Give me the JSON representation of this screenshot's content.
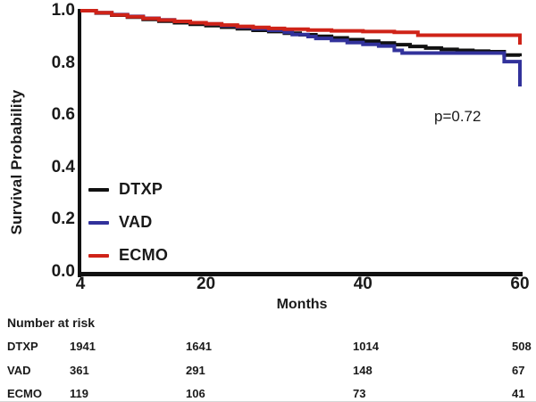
{
  "figure": {
    "y_axis_label": "Survival Probability",
    "x_axis_label": "Months",
    "p_value_label": "p=0.72"
  },
  "chart_data": {
    "type": "line",
    "subtype": "kaplan-meier-step-curves",
    "title": "",
    "xlabel": "Months",
    "ylabel": "Survival Probability",
    "annotation": "p=0.72",
    "xlim": [
      4,
      60
    ],
    "ylim": [
      0.0,
      1.0
    ],
    "xticks": [
      "4",
      "20",
      "40",
      "60"
    ],
    "xtick_values": [
      4,
      20,
      40,
      60
    ],
    "yticks": [
      "1.0",
      "0.8",
      "0.6",
      "0.4",
      "0.2",
      "0.0"
    ],
    "ytick_values": [
      1.0,
      0.8,
      0.6,
      0.4,
      0.2,
      0.0
    ],
    "grid": false,
    "legend_position": "inside-lower-left",
    "axis_color": "#111111",
    "series": [
      {
        "name": "DTXP",
        "color": "#111111",
        "points": [
          [
            4,
            1.0
          ],
          [
            6,
            0.991
          ],
          [
            8,
            0.983
          ],
          [
            10,
            0.975
          ],
          [
            12,
            0.967
          ],
          [
            14,
            0.96
          ],
          [
            16,
            0.954
          ],
          [
            18,
            0.948
          ],
          [
            20,
            0.943
          ],
          [
            22,
            0.937
          ],
          [
            24,
            0.931
          ],
          [
            26,
            0.925
          ],
          [
            28,
            0.92
          ],
          [
            30,
            0.914
          ],
          [
            32,
            0.908
          ],
          [
            34,
            0.902
          ],
          [
            36,
            0.896
          ],
          [
            38,
            0.889
          ],
          [
            40,
            0.883
          ],
          [
            42,
            0.876
          ],
          [
            44,
            0.87
          ],
          [
            46,
            0.863
          ],
          [
            48,
            0.857
          ],
          [
            50,
            0.852
          ],
          [
            52,
            0.848
          ],
          [
            54,
            0.845
          ],
          [
            56,
            0.843
          ],
          [
            58,
            0.83
          ],
          [
            60,
            0.825
          ]
        ]
      },
      {
        "name": "VAD",
        "color": "#32329b",
        "points": [
          [
            4,
            1.0
          ],
          [
            6,
            0.992
          ],
          [
            8,
            0.985
          ],
          [
            10,
            0.978
          ],
          [
            12,
            0.971
          ],
          [
            14,
            0.965
          ],
          [
            16,
            0.959
          ],
          [
            18,
            0.954
          ],
          [
            20,
            0.949
          ],
          [
            22,
            0.943
          ],
          [
            24,
            0.937
          ],
          [
            26,
            0.931
          ],
          [
            28,
            0.925
          ],
          [
            30,
            0.917
          ],
          [
            31,
            0.909
          ],
          [
            33,
            0.901
          ],
          [
            34,
            0.894
          ],
          [
            36,
            0.886
          ],
          [
            38,
            0.878
          ],
          [
            40,
            0.871
          ],
          [
            42,
            0.865
          ],
          [
            44,
            0.848
          ],
          [
            45,
            0.838
          ],
          [
            58,
            0.805
          ],
          [
            60,
            0.71
          ]
        ]
      },
      {
        "name": "ECMO",
        "color": "#cf2318",
        "points": [
          [
            4,
            1.0
          ],
          [
            6,
            0.992
          ],
          [
            8,
            0.984
          ],
          [
            10,
            0.977
          ],
          [
            12,
            0.97
          ],
          [
            14,
            0.964
          ],
          [
            16,
            0.959
          ],
          [
            18,
            0.954
          ],
          [
            20,
            0.95
          ],
          [
            22,
            0.945
          ],
          [
            24,
            0.94
          ],
          [
            26,
            0.936
          ],
          [
            28,
            0.932
          ],
          [
            30,
            0.929
          ],
          [
            33,
            0.926
          ],
          [
            36,
            0.923
          ],
          [
            40,
            0.92
          ],
          [
            44,
            0.917
          ],
          [
            47,
            0.906
          ],
          [
            60,
            0.87
          ]
        ]
      }
    ]
  },
  "legend": {
    "items": [
      {
        "label": "DTXP",
        "color": "#111111"
      },
      {
        "label": "VAD",
        "color": "#32329b"
      },
      {
        "label": "ECMO",
        "color": "#cf2318"
      }
    ]
  },
  "risk_table": {
    "title": "Number at risk",
    "time_points": [
      4,
      20,
      40,
      60
    ],
    "rows": [
      {
        "label": "DTXP",
        "values": [
          "1941",
          "1641",
          "1014",
          "508"
        ]
      },
      {
        "label": "VAD",
        "values": [
          "361",
          "291",
          "148",
          "67"
        ]
      },
      {
        "label": "ECMO",
        "values": [
          "119",
          "106",
          "73",
          "41"
        ]
      }
    ]
  }
}
